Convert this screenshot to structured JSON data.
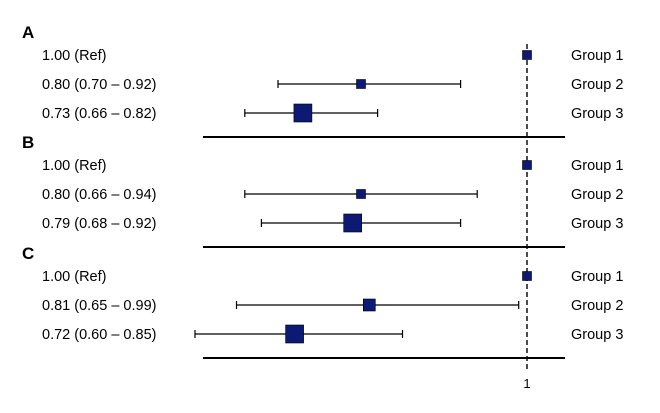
{
  "chart_data": {
    "type": "forest",
    "reference_value": 1,
    "x_ticks": [
      "1"
    ],
    "marker_color": "#0d1a73",
    "line_color": "#000000",
    "panels": [
      {
        "letter": "A",
        "rows": [
          {
            "group": "Group 1",
            "label": "1.00 (Ref)",
            "estimate": 1.0,
            "lower": null,
            "upper": null,
            "weight": "small"
          },
          {
            "group": "Group 2",
            "label": "0.80 (0.70 – 0.92)",
            "estimate": 0.8,
            "lower": 0.7,
            "upper": 0.92,
            "weight": "small"
          },
          {
            "group": "Group 3",
            "label": "0.73 (0.66 – 0.82)",
            "estimate": 0.73,
            "lower": 0.66,
            "upper": 0.82,
            "weight": "large"
          }
        ]
      },
      {
        "letter": "B",
        "rows": [
          {
            "group": "Group 1",
            "label": "1.00 (Ref)",
            "estimate": 1.0,
            "lower": null,
            "upper": null,
            "weight": "small"
          },
          {
            "group": "Group 2",
            "label": "0.80 (0.66 – 0.94)",
            "estimate": 0.8,
            "lower": 0.66,
            "upper": 0.94,
            "weight": "small"
          },
          {
            "group": "Group 3",
            "label": "0.79 (0.68 – 0.92)",
            "estimate": 0.79,
            "lower": 0.68,
            "upper": 0.92,
            "weight": "large"
          }
        ]
      },
      {
        "letter": "C",
        "rows": [
          {
            "group": "Group 1",
            "label": "1.00 (Ref)",
            "estimate": 1.0,
            "lower": null,
            "upper": null,
            "weight": "small"
          },
          {
            "group": "Group 2",
            "label": "0.81 (0.65 – 0.99)",
            "estimate": 0.81,
            "lower": 0.65,
            "upper": 0.99,
            "weight": "medium"
          },
          {
            "group": "Group 3",
            "label": "0.72 (0.60 – 0.85)",
            "estimate": 0.72,
            "lower": 0.6,
            "upper": 0.85,
            "weight": "large"
          }
        ]
      }
    ]
  }
}
